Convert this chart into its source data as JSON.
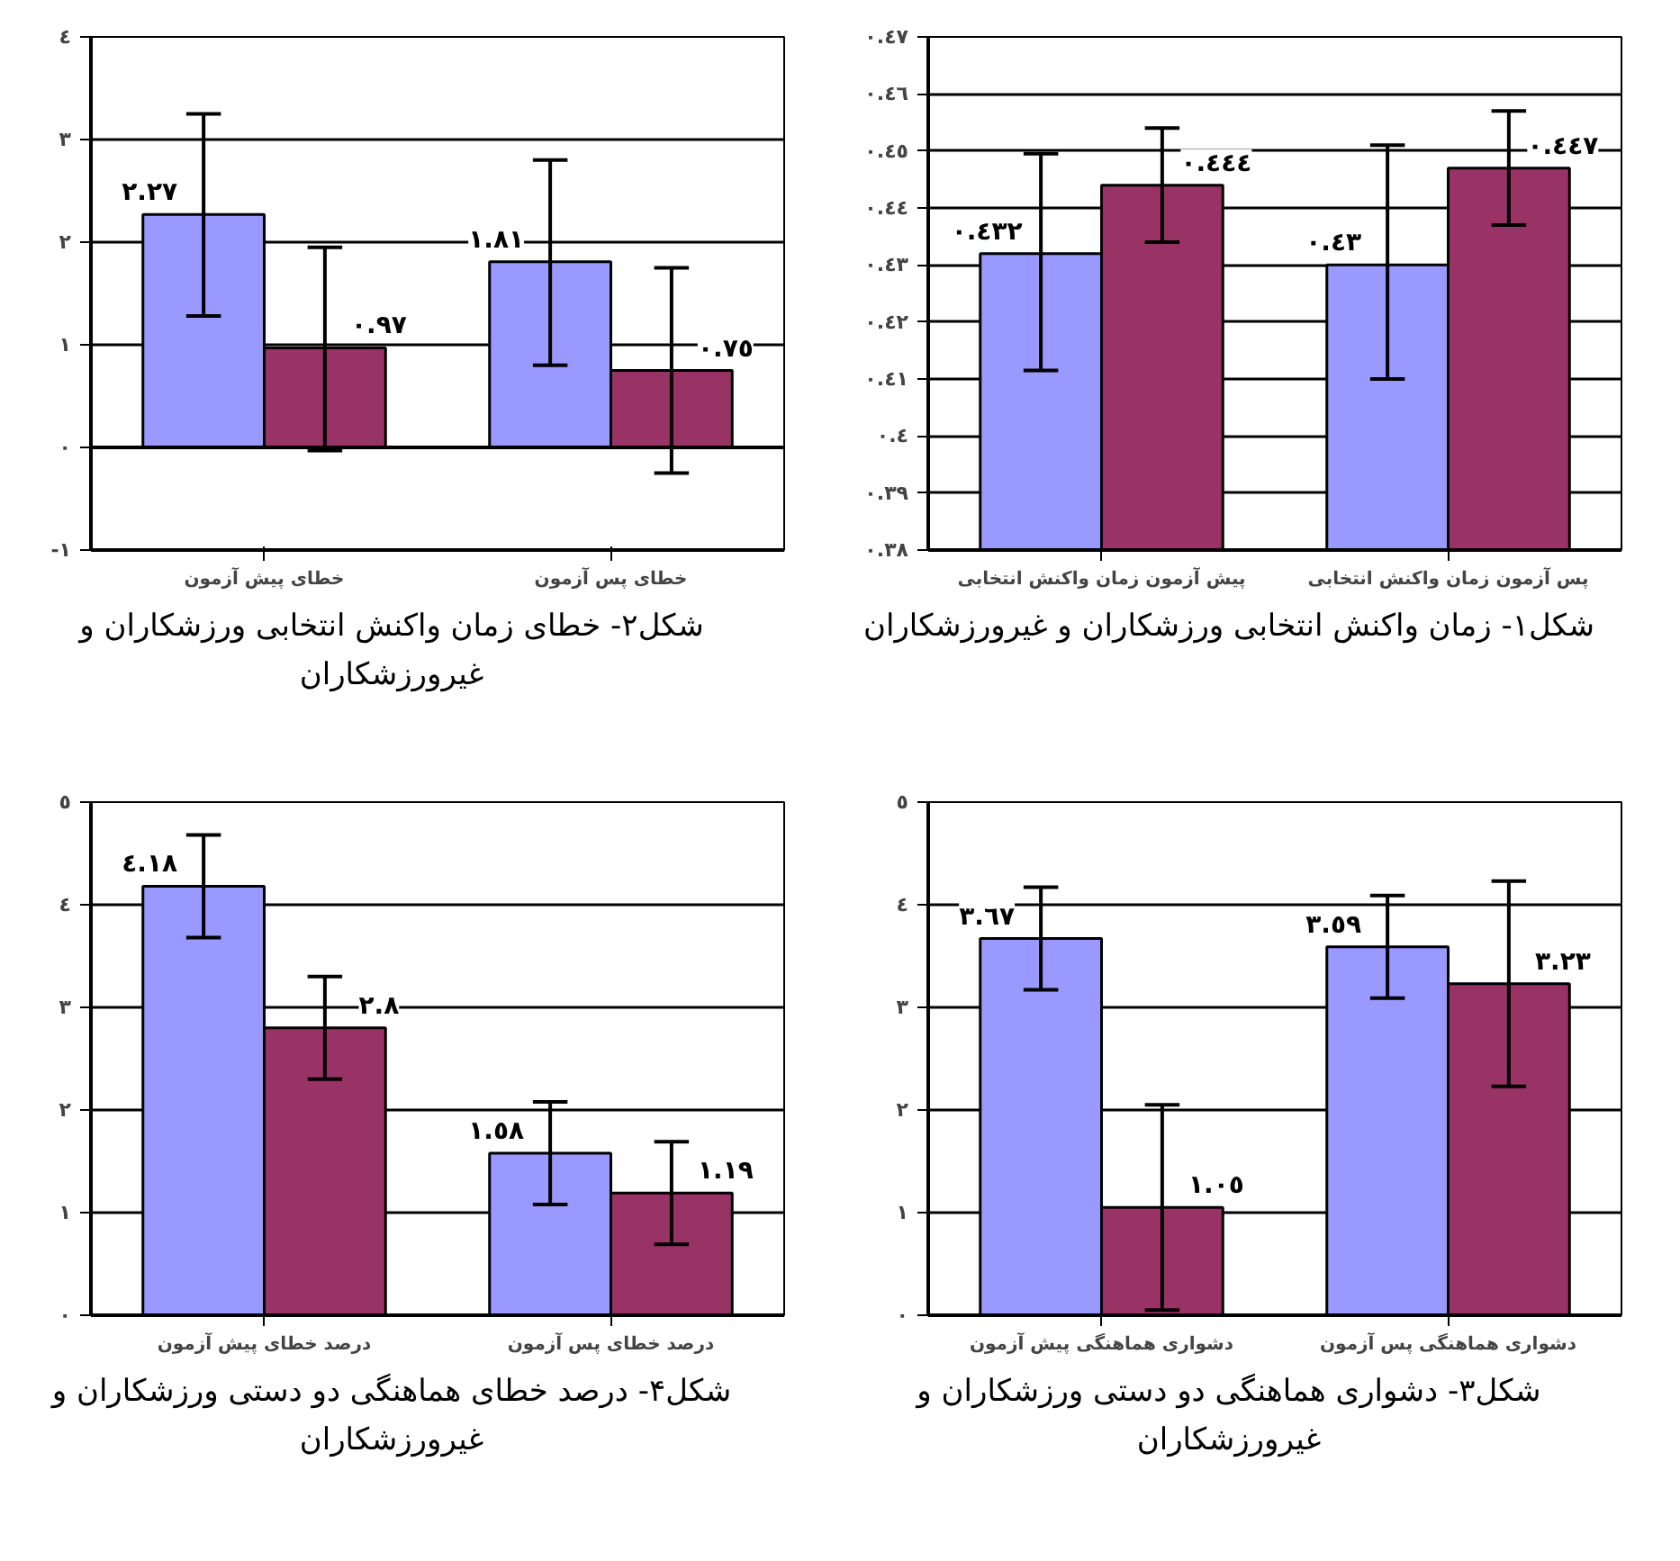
{
  "chart_data": [
    {
      "type": "bar",
      "categories": [
        "پیش آزمون زمان واکنش انتخابی",
        "پس آزمون زمان واکنش انتخابی"
      ],
      "ylim": [
        0.38,
        0.47
      ],
      "yticks": [
        {
          "value": 0.38,
          "label": "٠.٣٨"
        },
        {
          "value": 0.39,
          "label": "٠.٣٩"
        },
        {
          "value": 0.4,
          "label": "٠.٤"
        },
        {
          "value": 0.41,
          "label": "٠.٤١"
        },
        {
          "value": 0.42,
          "label": "٠.٤٢"
        },
        {
          "value": 0.43,
          "label": "٠.٤٣"
        },
        {
          "value": 0.44,
          "label": "٠.٤٤"
        },
        {
          "value": 0.45,
          "label": "٠.٤٥"
        },
        {
          "value": 0.46,
          "label": "٠.٤٦"
        },
        {
          "value": 0.47,
          "label": "٠.٤٧"
        }
      ],
      "grid": "y",
      "series": [
        {
          "color": "#9999ff",
          "values": [
            0.432,
            0.43
          ],
          "errors": [
            [
              0.4115,
              0.4495
            ],
            [
              0.41,
              0.451
            ]
          ],
          "value_labels": [
            "٠.٤٣٢",
            "٠.٤٣"
          ]
        },
        {
          "color": "#993366",
          "values": [
            0.444,
            0.447
          ],
          "errors": [
            [
              0.434,
              0.454
            ],
            [
              0.437,
              0.457
            ]
          ],
          "value_labels": [
            "٠.٤٤٤",
            "٠.٤٤٧"
          ]
        }
      ],
      "annotations": [
        "شکل۱- زمان واکنش انتخابی ورزشکاران و غیرورزشکاران"
      ]
    },
    {
      "type": "bar",
      "categories": [
        "خطای پیش آزمون",
        "خطای پس آزمون"
      ],
      "ylim": [
        -1,
        4
      ],
      "yticks": [
        {
          "value": -1,
          "label": "-١"
        },
        {
          "value": 0,
          "label": "٠"
        },
        {
          "value": 1,
          "label": "١"
        },
        {
          "value": 2,
          "label": "٢"
        },
        {
          "value": 3,
          "label": "٣"
        },
        {
          "value": 4,
          "label": "٤"
        }
      ],
      "grid": "y",
      "series": [
        {
          "color": "#9999ff",
          "values": [
            2.27,
            1.81
          ],
          "errors": [
            [
              1.28,
              3.25
            ],
            [
              0.8,
              2.8
            ]
          ],
          "value_labels": [
            "٢.٢٧",
            "١.٨١"
          ]
        },
        {
          "color": "#993366",
          "values": [
            0.97,
            0.75
          ],
          "errors": [
            [
              -0.03,
              1.95
            ],
            [
              -0.25,
              1.75
            ]
          ],
          "value_labels": [
            "٠.٩٧",
            "٠.٧٥"
          ]
        }
      ],
      "annotations": [
        "شکل۲- خطای زمان واکنش انتخابی ورزشکاران و غیرورزشکاران"
      ]
    },
    {
      "type": "bar",
      "categories": [
        "دشواری هماهنگی پیش آزمون",
        "دشواری هماهنگی پس آزمون"
      ],
      "ylim": [
        0,
        5
      ],
      "yticks": [
        {
          "value": 0,
          "label": "٠"
        },
        {
          "value": 1,
          "label": "١"
        },
        {
          "value": 2,
          "label": "٢"
        },
        {
          "value": 3,
          "label": "٣"
        },
        {
          "value": 4,
          "label": "٤"
        },
        {
          "value": 5,
          "label": "٥"
        }
      ],
      "grid": "y",
      "series": [
        {
          "color": "#9999ff",
          "values": [
            3.67,
            3.59
          ],
          "errors": [
            [
              3.17,
              4.17
            ],
            [
              3.09,
              4.09
            ]
          ],
          "value_labels": [
            "٣.٦٧",
            "٣.٥٩"
          ]
        },
        {
          "color": "#993366",
          "values": [
            1.05,
            3.23
          ],
          "errors": [
            [
              0.05,
              2.05
            ],
            [
              2.23,
              4.23
            ]
          ],
          "value_labels": [
            "١.٠٥",
            "٣.٢٣"
          ]
        }
      ],
      "annotations": [
        "شکل۳- دشواری هماهنگی دو دستی ورزشکاران و غیرورزشکاران"
      ]
    },
    {
      "type": "bar",
      "categories": [
        "درصد خطای پیش آزمون",
        "درصد خطای پس آزمون"
      ],
      "ylim": [
        0,
        5
      ],
      "yticks": [
        {
          "value": 0,
          "label": "٠"
        },
        {
          "value": 1,
          "label": "١"
        },
        {
          "value": 2,
          "label": "٢"
        },
        {
          "value": 3,
          "label": "٣"
        },
        {
          "value": 4,
          "label": "٤"
        },
        {
          "value": 5,
          "label": "٥"
        }
      ],
      "grid": "y",
      "series": [
        {
          "color": "#9999ff",
          "values": [
            4.18,
            1.58
          ],
          "errors": [
            [
              3.68,
              4.68
            ],
            [
              1.08,
              2.08
            ]
          ],
          "value_labels": [
            "٤.١٨",
            "١.٥٨"
          ]
        },
        {
          "color": "#993366",
          "values": [
            2.8,
            1.19
          ],
          "errors": [
            [
              2.3,
              3.3
            ],
            [
              0.69,
              1.69
            ]
          ],
          "value_labels": [
            "٢.٨",
            "١.١٩"
          ]
        }
      ],
      "annotations": [
        "شکل۴- درصد خطای هماهنگی دو دستی ورزشکاران و غیرورزشکاران"
      ]
    }
  ]
}
